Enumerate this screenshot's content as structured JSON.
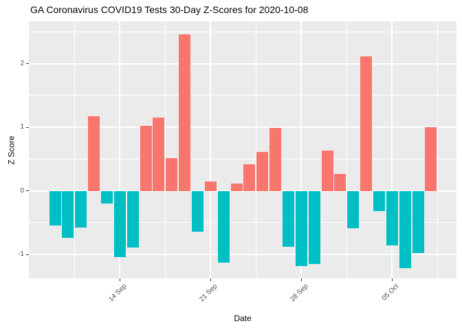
{
  "chart_data": {
    "type": "bar",
    "title": "GA Coronavirus COVID19 Tests 30-Day Z-Scores for 2020-10-08",
    "xlabel": "Date",
    "ylabel": "Z Score",
    "dates": [
      "2020-09-09",
      "2020-09-10",
      "2020-09-11",
      "2020-09-12",
      "2020-09-13",
      "2020-09-14",
      "2020-09-15",
      "2020-09-16",
      "2020-09-17",
      "2020-09-18",
      "2020-09-19",
      "2020-09-20",
      "2020-09-21",
      "2020-09-22",
      "2020-09-23",
      "2020-09-24",
      "2020-09-25",
      "2020-09-26",
      "2020-09-27",
      "2020-09-28",
      "2020-09-29",
      "2020-09-30",
      "2020-10-01",
      "2020-10-02",
      "2020-10-03",
      "2020-10-04",
      "2020-10-05",
      "2020-10-06",
      "2020-10-07",
      "2020-10-08"
    ],
    "values": [
      -0.54,
      -0.74,
      -0.58,
      1.17,
      -0.2,
      -1.04,
      -0.89,
      1.02,
      1.15,
      0.51,
      2.46,
      -0.64,
      0.15,
      -1.13,
      0.11,
      0.42,
      0.61,
      0.99,
      -0.88,
      -1.18,
      -1.15,
      0.63,
      0.27,
      -0.59,
      2.11,
      -0.32,
      -0.86,
      -1.21,
      -0.98,
      1.0
    ],
    "positive_color": "#F8766D",
    "negative_color": "#00BFC4",
    "panel_background": "#EBEBEB",
    "grid_color": "#FFFFFF",
    "tick_text_color": "#4D4D4D",
    "ylim": [
      -1.38,
      2.66
    ],
    "y_major_ticks": [
      {
        "value": 2,
        "label": "2"
      },
      {
        "value": 1,
        "label": "1"
      },
      {
        "value": 0,
        "label": "0"
      },
      {
        "value": -1,
        "label": "-1"
      }
    ],
    "y_minor_ticks": [
      2.5,
      1.5,
      0.5,
      -0.5
    ],
    "x_major_ticks": [
      {
        "day_index": 5,
        "label": "14 Sep"
      },
      {
        "day_index": 12,
        "label": "21 Sep"
      },
      {
        "day_index": 19,
        "label": "28 Sep"
      },
      {
        "day_index": 26,
        "label": "05 Oct"
      }
    ],
    "x_minor_day_indices": [
      1.5,
      8.5,
      15.5,
      22.5,
      29.5
    ],
    "legend_position": "none",
    "grid": true
  }
}
